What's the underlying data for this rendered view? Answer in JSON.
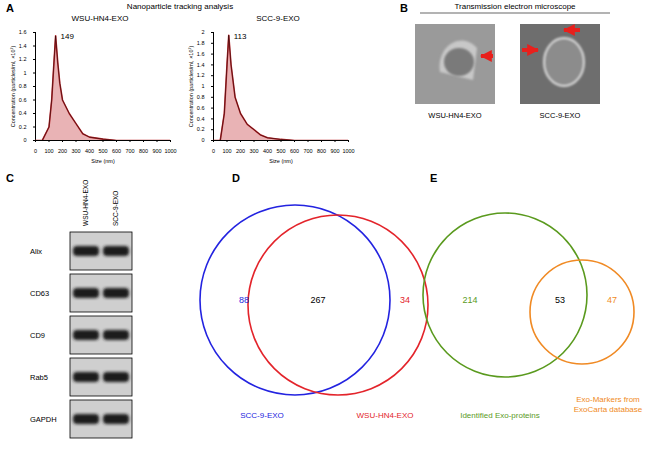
{
  "chart_data": [
    {
      "type": "line",
      "title": "WSU-HN4-EXO",
      "x_label": "Size (nm)",
      "y_label": "Concentration (particles/ml, ×10⁷)",
      "x": [
        0,
        50,
        100,
        120,
        135,
        149,
        165,
        180,
        200,
        250,
        300,
        350,
        400,
        500,
        600,
        700,
        800,
        1000
      ],
      "series": [
        {
          "color": "#c0262b",
          "values": [
            0,
            0,
            0.2,
            0.6,
            1.1,
            1.55,
            1.15,
            0.85,
            0.6,
            0.4,
            0.25,
            0.1,
            0.05,
            0.02,
            0,
            0,
            0,
            0
          ]
        }
      ],
      "xlim": [
        0,
        1000
      ],
      "xticks": [
        0,
        100,
        200,
        300,
        400,
        500,
        600,
        700,
        800,
        900,
        1000
      ],
      "ylim": [
        0,
        1.6
      ],
      "yticks": [
        0,
        0.2,
        0.4,
        0.6,
        0.8,
        1,
        1.2,
        1.4,
        1.6
      ],
      "annotations": [
        {
          "x": 149,
          "y": 1.55,
          "text": "149"
        }
      ]
    },
    {
      "type": "line",
      "title": "SCC-9-EXO",
      "x_label": "Size (nm)",
      "y_label": "Concentration (particles/ml, ×10⁷)",
      "x": [
        0,
        50,
        80,
        100,
        113,
        130,
        160,
        200,
        250,
        300,
        350,
        400,
        500,
        600,
        700,
        800,
        1000
      ],
      "series": [
        {
          "color": "#c0262b",
          "values": [
            0,
            0,
            0.5,
            1.4,
            1.95,
            1.4,
            0.8,
            0.5,
            0.3,
            0.2,
            0.1,
            0.05,
            0.02,
            0,
            0,
            0,
            0
          ]
        }
      ],
      "xlim": [
        0,
        1000
      ],
      "xticks": [
        0,
        100,
        200,
        300,
        400,
        500,
        600,
        700,
        800,
        900,
        1000
      ],
      "ylim": [
        0,
        2
      ],
      "yticks": [
        0,
        0.2,
        0.4,
        0.6,
        0.8,
        1,
        1.2,
        1.4,
        1.6,
        1.8,
        2
      ],
      "annotations": [
        {
          "x": 113,
          "y": 1.95,
          "text": "113"
        }
      ]
    }
  ],
  "figure": {
    "A": {
      "letter": "A",
      "title": "Nanoparticle tracking analysis"
    },
    "B": {
      "letter": "B",
      "title": "Transmission electron microscope",
      "images": [
        {
          "label": "WSU-HN4-EXO"
        },
        {
          "label": "SCC-9-EXO"
        }
      ]
    },
    "C": {
      "letter": "C",
      "lanes": [
        "WSU-HN4-EXO",
        "SCC-9-EXO"
      ],
      "bands": [
        "Alix",
        "CD63",
        "CD9",
        "Rab5",
        "GAPDH"
      ]
    },
    "D": {
      "letter": "D",
      "sets": [
        {
          "label": [
            "SCC-9-EXO"
          ],
          "color": "#2323e0",
          "count": 88
        },
        {
          "label": [
            "WSU-HN4-EXO"
          ],
          "color": "#e3242b",
          "count": 34
        }
      ],
      "intersection": 267
    },
    "E": {
      "letter": "E",
      "sets": [
        {
          "label": [
            "Identified Exo-proteins"
          ],
          "color": "#5a9a1e",
          "count": 214
        },
        {
          "label": [
            "Exo-Markers from",
            "ExoCarta database"
          ],
          "color": "#f08a24",
          "count": 47
        }
      ],
      "intersection": 53
    }
  }
}
